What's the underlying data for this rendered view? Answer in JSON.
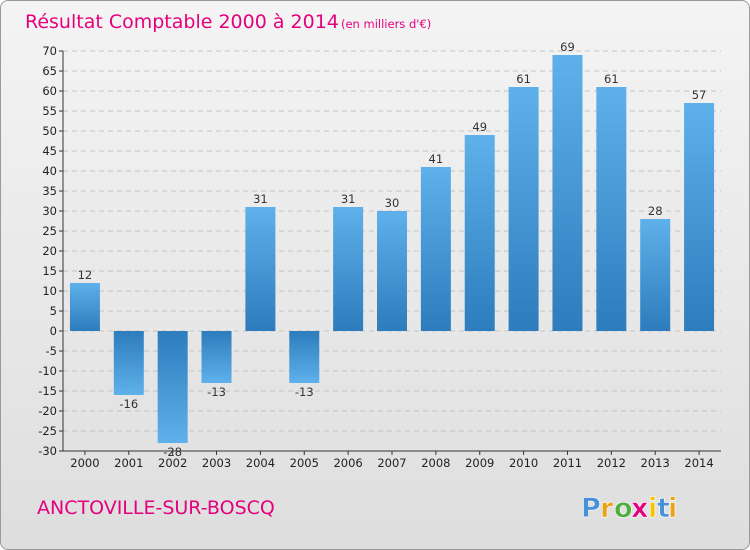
{
  "chart_data": {
    "type": "bar",
    "title": "Résultat Comptable 2000 à 2014",
    "subtitle": "(en milliers d'€)",
    "categories": [
      "2000",
      "2001",
      "2002",
      "2003",
      "2004",
      "2005",
      "2006",
      "2007",
      "2008",
      "2009",
      "2010",
      "2011",
      "2012",
      "2013",
      "2014"
    ],
    "values": [
      12,
      -16,
      -28,
      -13,
      31,
      -13,
      31,
      30,
      41,
      49,
      61,
      69,
      61,
      28,
      57
    ],
    "ylim": [
      -30,
      70
    ],
    "yticks": [
      -30,
      -25,
      -20,
      -15,
      -10,
      -5,
      0,
      5,
      10,
      15,
      20,
      25,
      30,
      35,
      40,
      45,
      50,
      55,
      60,
      65,
      70
    ],
    "ytick_labels": [
      "-30",
      "-25",
      "-20",
      "-15",
      "-10",
      "-5",
      "0",
      "5",
      "10",
      "15",
      "20",
      "25",
      "30",
      "35",
      "40",
      "45",
      "50",
      "55",
      "60",
      "65",
      "70"
    ],
    "data_labels": [
      "12",
      "-16",
      "-28",
      "-13",
      "31",
      "-13",
      "31",
      "30",
      "41",
      "49",
      "61",
      "69",
      "61",
      "28",
      "57"
    ],
    "grid": true,
    "xlabel": "",
    "ylabel": ""
  },
  "commune": "ANCTOVILLE-SUR-BOSCQ",
  "logo": {
    "letters": [
      "P",
      "r",
      "o",
      "x",
      "i",
      "t",
      "i"
    ],
    "colors": [
      "#4a90d9",
      "#e8a317",
      "#4fae3c",
      "#e5007e",
      "#f5c400",
      "#4a90d9",
      "#e8a317"
    ]
  },
  "colors": {
    "accent": "#e5007e",
    "bar_light": "#5aaee8",
    "bar_dark": "#2e7fc0"
  }
}
